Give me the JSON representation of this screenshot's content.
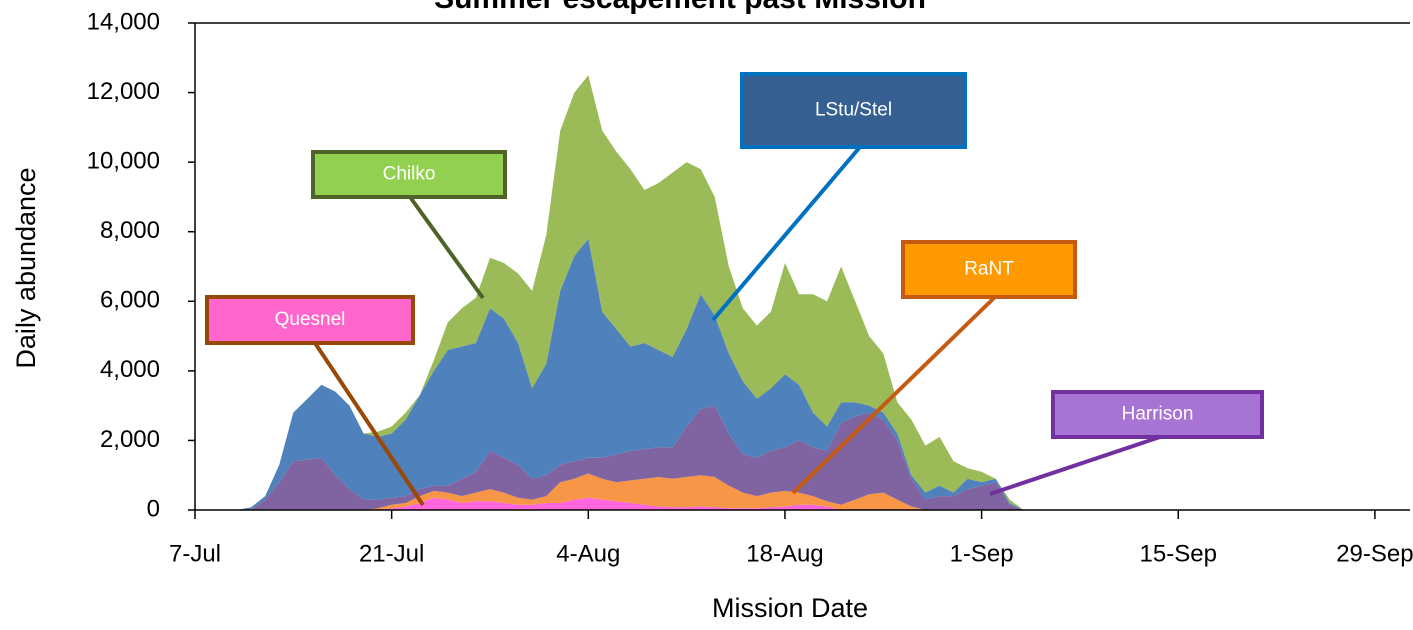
{
  "chart_data": {
    "type": "stacked_area",
    "title": "Summer escapement past Mission",
    "xlabel": "Mission Date",
    "ylabel": "Daily abundance",
    "x": [
      "10-Jul",
      "11-Jul",
      "12-Jul",
      "13-Jul",
      "14-Jul",
      "15-Jul",
      "16-Jul",
      "17-Jul",
      "18-Jul",
      "19-Jul",
      "20-Jul",
      "21-Jul",
      "22-Jul",
      "23-Jul",
      "24-Jul",
      "25-Jul",
      "26-Jul",
      "27-Jul",
      "28-Jul",
      "29-Jul",
      "30-Jul",
      "31-Jul",
      "1-Aug",
      "2-Aug",
      "3-Aug",
      "4-Aug",
      "5-Aug",
      "6-Aug",
      "7-Aug",
      "8-Aug",
      "9-Aug",
      "10-Aug",
      "11-Aug",
      "12-Aug",
      "13-Aug",
      "14-Aug",
      "15-Aug",
      "16-Aug",
      "17-Aug",
      "18-Aug",
      "19-Aug",
      "20-Aug",
      "21-Aug",
      "22-Aug",
      "23-Aug",
      "24-Aug",
      "25-Aug",
      "26-Aug",
      "27-Aug",
      "28-Aug",
      "29-Aug",
      "30-Aug",
      "31-Aug",
      "1-Sep",
      "2-Sep",
      "3-Sep",
      "4-Sep"
    ],
    "series": [
      {
        "name": "Quesnel",
        "color": "#ff66dd",
        "values": [
          0,
          0,
          0,
          0,
          0,
          0,
          0,
          0,
          0,
          0,
          0,
          50,
          100,
          200,
          350,
          300,
          200,
          250,
          250,
          200,
          150,
          150,
          200,
          200,
          300,
          350,
          300,
          250,
          200,
          150,
          100,
          80,
          80,
          100,
          80,
          50,
          50,
          50,
          80,
          100,
          150,
          150,
          100,
          0,
          0,
          0,
          0,
          0,
          0,
          0,
          0,
          0,
          0,
          0,
          0,
          0,
          0
        ]
      },
      {
        "name": "RaNT",
        "color": "#f79646",
        "values": [
          0,
          0,
          0,
          0,
          0,
          0,
          0,
          0,
          0,
          0,
          50,
          100,
          100,
          200,
          200,
          200,
          200,
          250,
          350,
          300,
          200,
          150,
          200,
          600,
          600,
          700,
          600,
          550,
          650,
          750,
          850,
          820,
          870,
          900,
          870,
          650,
          450,
          350,
          420,
          450,
          350,
          250,
          150,
          150,
          300,
          450,
          500,
          300,
          100,
          0,
          0,
          0,
          0,
          0,
          0,
          0,
          0
        ]
      },
      {
        "name": "Harrison",
        "color": "#8064a2",
        "values": [
          0,
          20,
          300,
          800,
          1400,
          1450,
          1500,
          1000,
          600,
          300,
          250,
          200,
          200,
          200,
          150,
          200,
          500,
          600,
          1100,
          1000,
          950,
          600,
          600,
          500,
          500,
          450,
          600,
          800,
          850,
          850,
          850,
          900,
          1450,
          1900,
          2050,
          1500,
          1100,
          1100,
          1200,
          1250,
          1500,
          1400,
          1450,
          2350,
          2400,
          2350,
          2100,
          1700,
          800,
          300,
          400,
          400,
          600,
          700,
          800,
          150,
          0
        ]
      },
      {
        "name": "LStu/Stel",
        "color": "#4f81bd",
        "values": [
          0,
          60,
          100,
          500,
          1400,
          1750,
          2100,
          2400,
          2400,
          1900,
          1800,
          1850,
          2200,
          2700,
          3300,
          3900,
          3800,
          3700,
          4100,
          4000,
          3500,
          2600,
          3200,
          5000,
          5900,
          6300,
          4200,
          3600,
          3000,
          3050,
          2800,
          2600,
          2800,
          3300,
          2600,
          2300,
          2100,
          1700,
          1800,
          2100,
          1600,
          1000,
          700,
          600,
          400,
          200,
          200,
          200,
          100,
          200,
          300,
          100,
          300,
          100,
          100,
          50,
          0
        ]
      },
      {
        "name": "Chilko",
        "color": "#9bbb59",
        "values": [
          0,
          0,
          0,
          0,
          0,
          0,
          0,
          0,
          0,
          0,
          150,
          200,
          200,
          0,
          300,
          800,
          1100,
          1300,
          1450,
          1600,
          2000,
          2800,
          3700,
          4600,
          4700,
          4700,
          5200,
          5100,
          5100,
          4400,
          4800,
          5300,
          4800,
          3600,
          3400,
          2500,
          2100,
          2100,
          2200,
          3200,
          2600,
          3400,
          3600,
          3900,
          2900,
          2000,
          1700,
          900,
          1600,
          1350,
          1400,
          900,
          300,
          300,
          0,
          100,
          0
        ]
      }
    ],
    "xlim": [
      "7-Jul",
      "1-Oct"
    ],
    "xticks": [
      "7-Jul",
      "21-Jul",
      "4-Aug",
      "18-Aug",
      "1-Sep",
      "15-Sep",
      "29-Sep"
    ],
    "ylim": [
      0,
      14000
    ],
    "yticks": [
      0,
      {
        "value": 2000,
        "label": "2,000"
      },
      {
        "value": 4000,
        "label": "4,000"
      },
      {
        "value": 6000,
        "label": "6,000"
      },
      {
        "value": 8000,
        "label": "8,000"
      },
      {
        "value": 10000,
        "label": "10,000"
      },
      {
        "value": 12000,
        "label": "12,000"
      },
      {
        "value": 14000,
        "label": "14,000"
      }
    ],
    "grid": false
  }
}
